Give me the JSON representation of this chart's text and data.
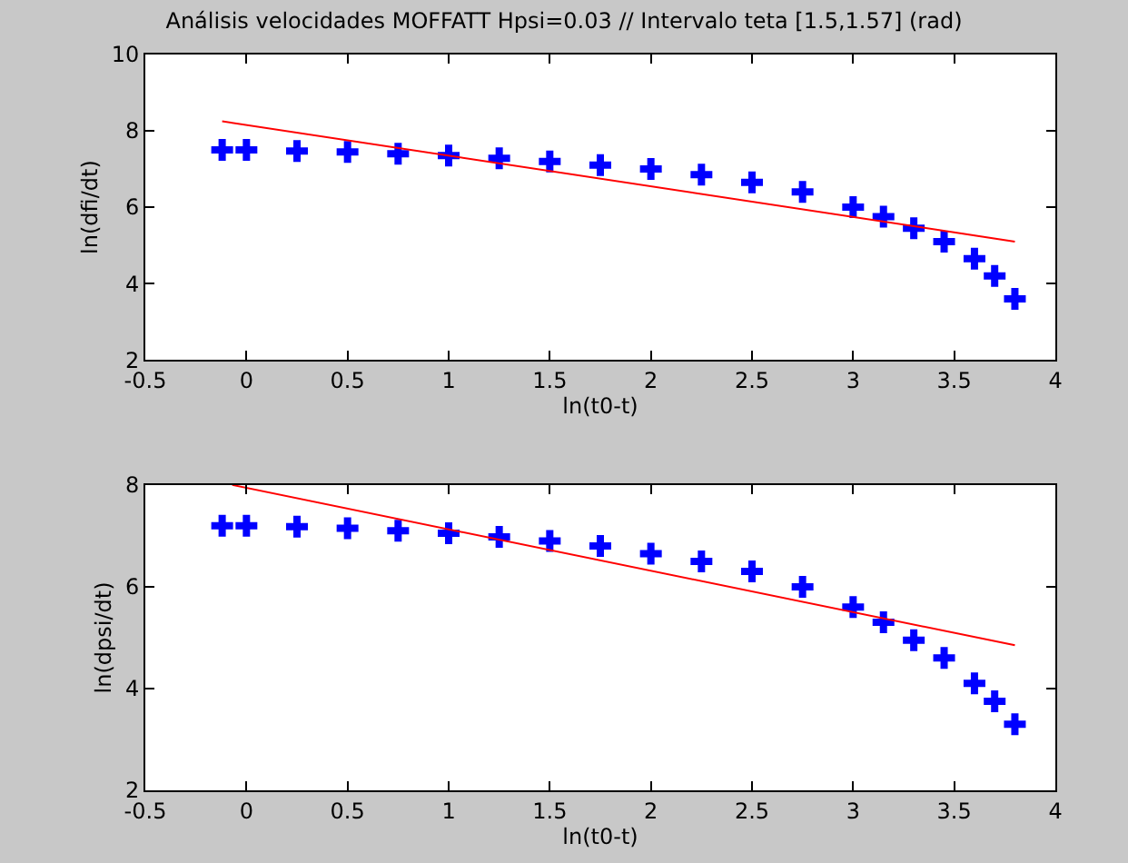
{
  "chart_data": [
    {
      "type": "scatter",
      "title": "Análisis velocidades MOFFATT Hpsi=0.03 // Intervalo teta [1.5,1.57] (rad)",
      "xlabel": "ln(t0-t)",
      "ylabel": "ln(dfi/dt)",
      "xlim": [
        -0.5,
        4
      ],
      "xticks": [
        -0.5,
        0,
        0.5,
        1,
        1.5,
        2,
        2.5,
        3,
        3.5,
        4
      ],
      "ylim": [
        2,
        10
      ],
      "yticks": [
        2,
        4,
        6,
        8,
        10
      ],
      "series": [
        {
          "color": "#0000ff",
          "marker": "cross",
          "x": [
            -0.12,
            0.0,
            0.25,
            0.5,
            0.75,
            1.0,
            1.25,
            1.5,
            1.75,
            2.0,
            2.25,
            2.5,
            2.75,
            3.0,
            3.15,
            3.3,
            3.45,
            3.6,
            3.7,
            3.8
          ],
          "values": [
            7.5,
            7.5,
            7.47,
            7.45,
            7.4,
            7.35,
            7.28,
            7.2,
            7.1,
            7.0,
            6.85,
            6.65,
            6.4,
            6.0,
            5.75,
            5.45,
            5.1,
            4.65,
            4.2,
            3.6
          ]
        },
        {
          "type": "line",
          "color": "#ff0000",
          "x": [
            -0.12,
            3.8
          ],
          "values": [
            8.25,
            5.1
          ]
        }
      ]
    },
    {
      "type": "scatter",
      "xlabel": "ln(t0-t)",
      "ylabel": "ln(dpsi/dt)",
      "xlim": [
        -0.5,
        4
      ],
      "xticks": [
        -0.5,
        0,
        0.5,
        1,
        1.5,
        2,
        2.5,
        3,
        3.5,
        4
      ],
      "ylim": [
        2,
        8
      ],
      "yticks": [
        2,
        4,
        6,
        8
      ],
      "series": [
        {
          "color": "#0000ff",
          "marker": "cross",
          "x": [
            -0.12,
            0.0,
            0.25,
            0.5,
            0.75,
            1.0,
            1.25,
            1.5,
            1.75,
            2.0,
            2.25,
            2.5,
            2.75,
            3.0,
            3.15,
            3.3,
            3.45,
            3.6,
            3.7,
            3.8
          ],
          "values": [
            7.2,
            7.2,
            7.18,
            7.15,
            7.1,
            7.05,
            6.98,
            6.9,
            6.8,
            6.65,
            6.5,
            6.3,
            6.0,
            5.6,
            5.3,
            4.95,
            4.6,
            4.1,
            3.75,
            3.3
          ]
        },
        {
          "type": "line",
          "color": "#ff0000",
          "x": [
            -0.07,
            3.8
          ],
          "values": [
            8.0,
            4.85
          ]
        }
      ]
    }
  ]
}
